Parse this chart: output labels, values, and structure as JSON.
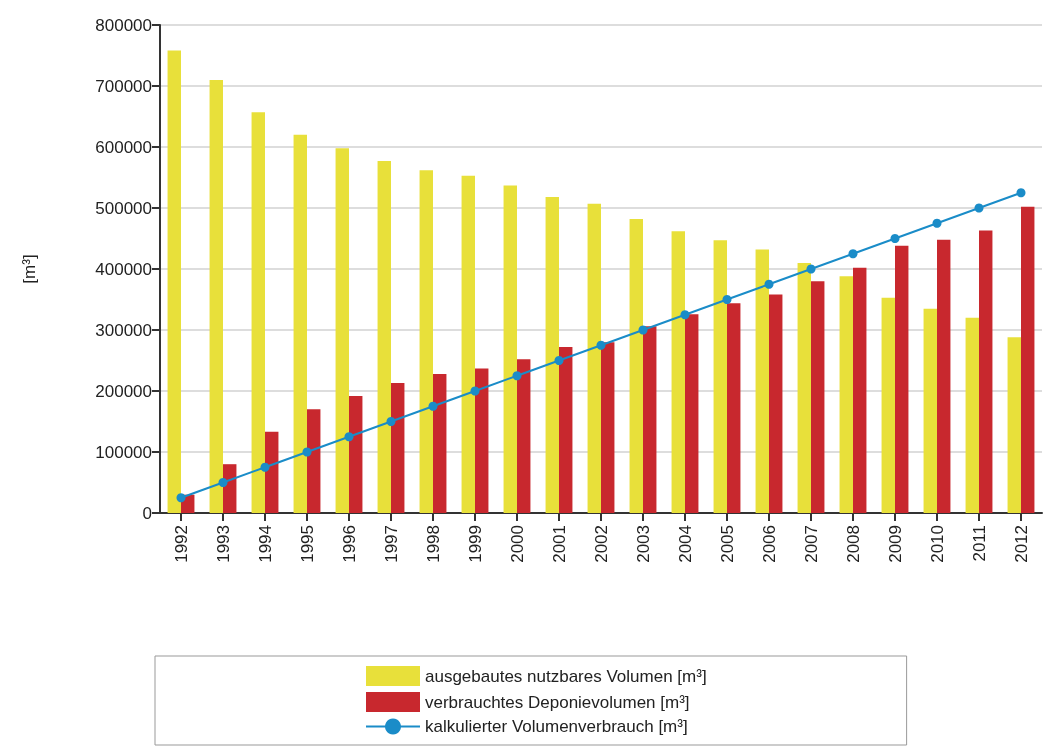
{
  "chart_data": {
    "type": "bar",
    "ylabel": "[m³]",
    "categories": [
      "1992",
      "1993",
      "1994",
      "1995",
      "1996",
      "1997",
      "1998",
      "1999",
      "2000",
      "2001",
      "2002",
      "2003",
      "2004",
      "2005",
      "2006",
      "2007",
      "2008",
      "2009",
      "2010",
      "2011",
      "2012"
    ],
    "series": [
      {
        "name": "ausgebautes nutzbares Volumen [m³]",
        "color": "#e8e03a",
        "values": [
          758000,
          710000,
          657000,
          620000,
          598000,
          577000,
          562000,
          553000,
          537000,
          518000,
          507000,
          482000,
          462000,
          447000,
          432000,
          410000,
          388000,
          353000,
          335000,
          320000,
          288000
        ]
      },
      {
        "name": "verbrauchtes Deponievolumen [m³]",
        "color": "#c8282e",
        "values": [
          30000,
          80000,
          133000,
          170000,
          192000,
          213000,
          228000,
          237000,
          252000,
          272000,
          280000,
          306000,
          326000,
          344000,
          358000,
          380000,
          402000,
          438000,
          448000,
          463000,
          502000
        ]
      },
      {
        "name": "kalkulierter Volumenverbrauch [m³]",
        "type": "line",
        "color": "#1a8cc8",
        "marker": "circle",
        "values": [
          25000,
          50000,
          75000,
          100000,
          125000,
          150000,
          175000,
          200000,
          225000,
          250000,
          275000,
          300000,
          325000,
          350000,
          375000,
          400000,
          425000,
          450000,
          475000,
          500000,
          525000
        ]
      }
    ],
    "ylim": [
      0,
      800000
    ],
    "yticks": [
      0,
      100000,
      200000,
      300000,
      400000,
      500000,
      600000,
      700000,
      800000
    ],
    "grid": "y",
    "legend": "bottom"
  }
}
